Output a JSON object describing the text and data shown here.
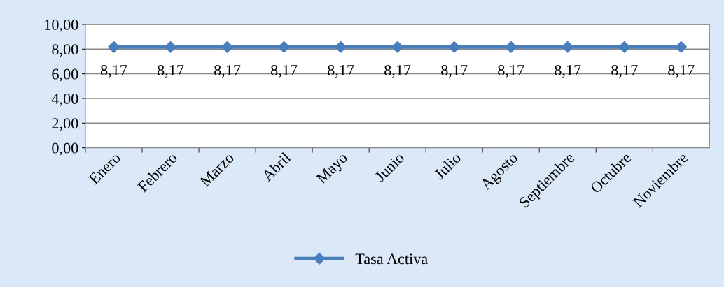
{
  "chart_data": {
    "type": "line",
    "categories": [
      "Enero",
      "Febrero",
      "Marzo",
      "Abril",
      "Mayo",
      "Junio",
      "Julio",
      "Agosto",
      "Septiembre",
      "Octubre",
      "Noviembre"
    ],
    "series": [
      {
        "name": "Tasa Activa",
        "color": "#4a7ebb",
        "values": [
          8.17,
          8.17,
          8.17,
          8.17,
          8.17,
          8.17,
          8.17,
          8.17,
          8.17,
          8.17,
          8.17
        ],
        "value_labels": [
          "8,17",
          "8,17",
          "8,17",
          "8,17",
          "8,17",
          "8,17",
          "8,17",
          "8,17",
          "8,17",
          "8,17",
          "8,17"
        ]
      }
    ],
    "ylim": [
      0,
      10
    ],
    "yticks": [
      {
        "value": 0,
        "label": "0,00"
      },
      {
        "value": 2,
        "label": "2,00"
      },
      {
        "value": 4,
        "label": "4,00"
      },
      {
        "value": 6,
        "label": "6,00"
      },
      {
        "value": 8,
        "label": "8,00"
      },
      {
        "value": 10,
        "label": "10,00"
      }
    ],
    "grid": "y",
    "legend": "bottom",
    "marker": "diamond",
    "line_style": "solid"
  }
}
